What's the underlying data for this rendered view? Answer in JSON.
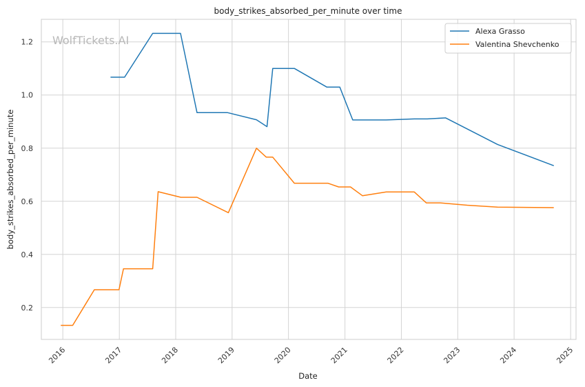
{
  "chart_data": {
    "type": "line",
    "title": "body_strikes_absorbed_per_minute over time",
    "xlabel": "Date",
    "ylabel": "body_strikes_absorbed_per_minute",
    "watermark": "WolfTickets.AI",
    "x_ticks": [
      "2016",
      "2017",
      "2018",
      "2019",
      "2020",
      "2021",
      "2022",
      "2023",
      "2024",
      "2025"
    ],
    "y_ticks": [
      "0.2",
      "0.4",
      "0.6",
      "0.8",
      "1.0",
      "1.2"
    ],
    "xlim": [
      "2015-08-15",
      "2025-02-05"
    ],
    "ylim": [
      0.08,
      1.285
    ],
    "grid": true,
    "legend_position": "top-right",
    "series": [
      {
        "name": "Alexa Grasso",
        "color": "#1f77b4",
        "x": [
          "2016-11-05",
          "2017-02-04",
          "2017-08-05",
          "2018-02-01",
          "2018-05-19",
          "2018-12-01",
          "2019-06-08",
          "2019-08-15",
          "2019-09-21",
          "2020-02-08",
          "2020-09-05",
          "2020-11-28",
          "2021-02-20",
          "2021-09-25",
          "2022-03-26",
          "2022-06-18",
          "2022-10-15",
          "2023-09-16",
          "2024-09-14"
        ],
        "y": [
          1.067,
          1.067,
          1.232,
          1.232,
          0.934,
          0.934,
          0.907,
          0.881,
          1.1,
          1.1,
          1.03,
          1.03,
          0.906,
          0.906,
          0.91,
          0.91,
          0.914,
          0.814,
          0.734
        ]
      },
      {
        "name": "Valentina Shevchenko",
        "color": "#ff7f0e",
        "x": [
          "2015-12-19",
          "2016-03-05",
          "2016-07-23",
          "2016-12-30",
          "2017-01-28",
          "2017-08-05",
          "2017-09-09",
          "2018-02-03",
          "2018-05-19",
          "2018-12-08",
          "2019-06-08",
          "2019-08-10",
          "2019-09-21",
          "2020-02-08",
          "2020-09-12",
          "2020-11-21",
          "2021-02-06",
          "2021-04-24",
          "2021-09-25",
          "2022-03-26",
          "2022-06-11",
          "2022-09-10",
          "2023-03-04",
          "2023-09-16",
          "2024-09-14"
        ],
        "y": [
          0.133,
          0.133,
          0.267,
          0.267,
          0.346,
          0.346,
          0.636,
          0.615,
          0.615,
          0.557,
          0.8,
          0.766,
          0.766,
          0.668,
          0.668,
          0.654,
          0.654,
          0.621,
          0.635,
          0.635,
          0.594,
          0.594,
          0.585,
          0.578,
          0.576
        ]
      }
    ]
  }
}
